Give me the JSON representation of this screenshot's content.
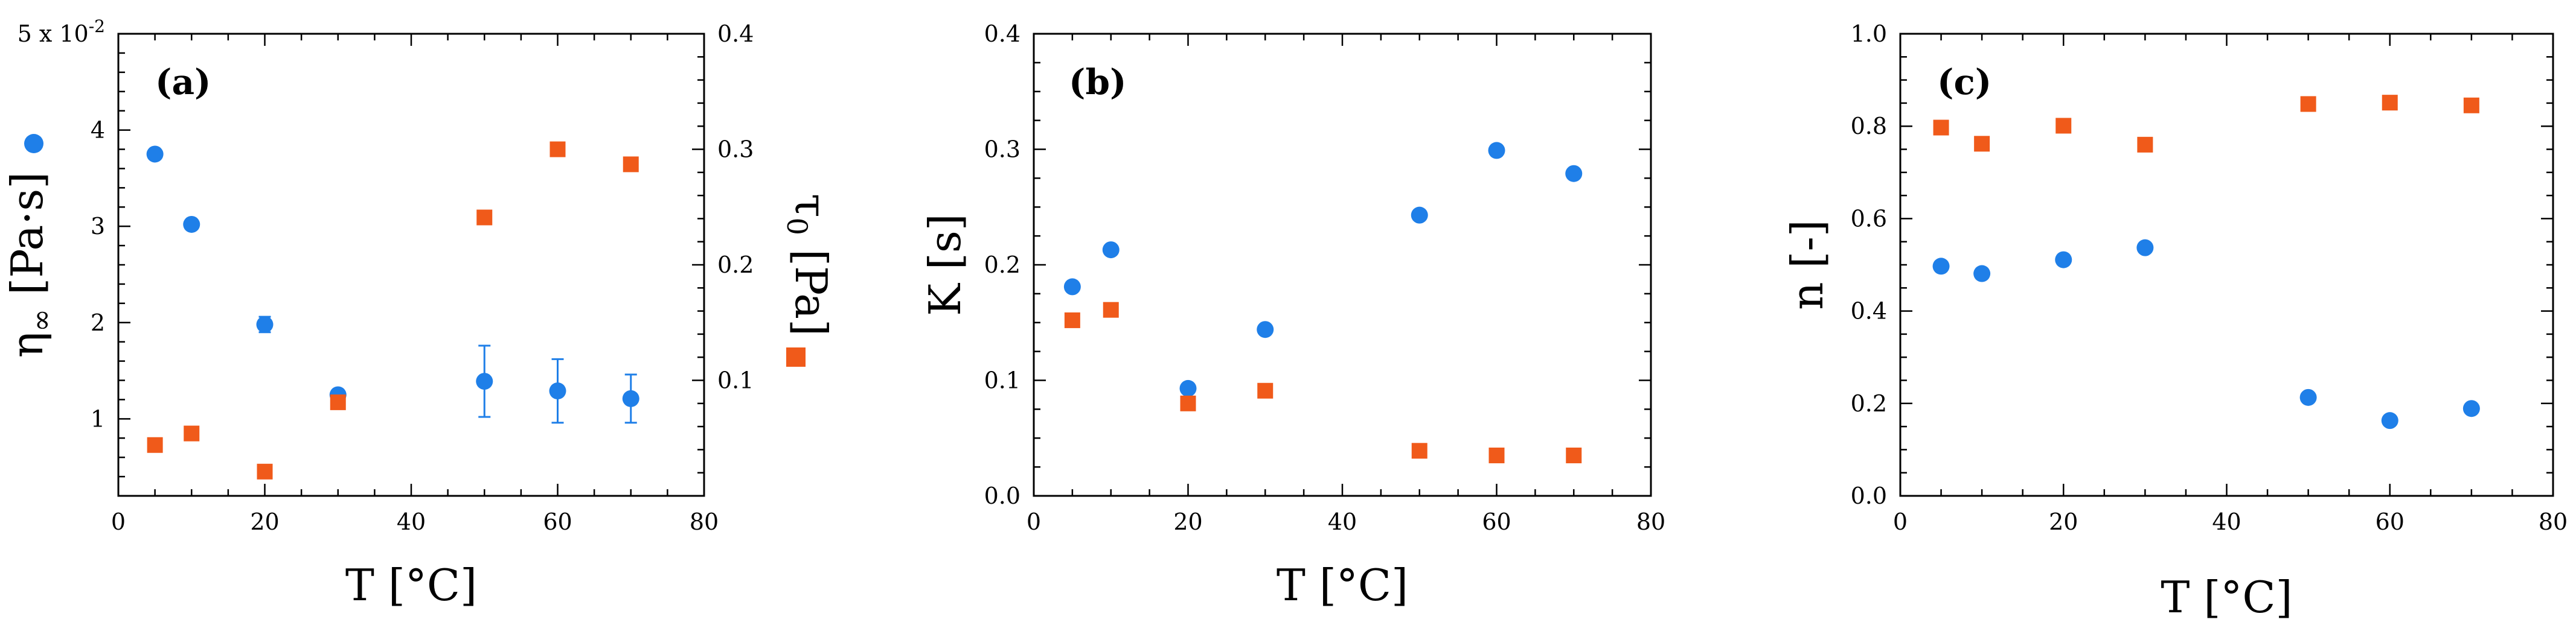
{
  "colors": {
    "blue": "#1f7fe8",
    "orange": "#f05a1a",
    "axis": "#000000"
  },
  "chart_data": [
    {
      "type": "scatter",
      "panel_label": "(a)",
      "xlabel": "T [°C]",
      "xlim": [
        0,
        80
      ],
      "x_ticks": [
        0,
        20,
        40,
        60,
        80
      ],
      "x_tick_labels": [
        "0",
        "20",
        "40",
        "60",
        "80"
      ],
      "ylabel_left": {
        "symbol": "η",
        "sub": "∞",
        "unit": " [Pa·s]"
      },
      "ylim_left": [
        0.2,
        5
      ],
      "y_ticks_left": [
        1,
        2,
        3,
        4,
        5
      ],
      "y_tick_labels_left": [
        "1",
        "2",
        "3",
        "4",
        "5 x 10-2"
      ],
      "y_scale_label": {
        "base": "5 x 10",
        "exp": "-2"
      },
      "ylabel_right": {
        "symbol": "τ",
        "sub": "0",
        "unit": " [Pa]"
      },
      "ylim_right": [
        0,
        0.4
      ],
      "y_ticks_right": [
        0.1,
        0.2,
        0.3,
        0.4
      ],
      "y_tick_labels_right": [
        "0.1",
        "0.2",
        "0.3",
        "0.4"
      ],
      "series": [
        {
          "name": "η∞",
          "marker": "circle",
          "axis": "left",
          "color": "#1f7fe8",
          "x": [
            5,
            10,
            20,
            30,
            50,
            60,
            70
          ],
          "values": [
            3.75,
            3.02,
            1.98,
            1.25,
            1.39,
            1.29,
            1.21
          ],
          "error": [
            0,
            0,
            0.08,
            0,
            0.37,
            0.33,
            0.25
          ]
        },
        {
          "name": "τ0",
          "marker": "square",
          "axis": "right",
          "color": "#f05a1a",
          "x": [
            5,
            10,
            20,
            30,
            50,
            60,
            70
          ],
          "values": [
            0.044,
            0.054,
            0.021,
            0.081,
            0.241,
            0.3,
            0.287
          ]
        }
      ]
    },
    {
      "type": "scatter",
      "panel_label": "(b)",
      "xlabel": "T [°C]",
      "xlim": [
        0,
        80
      ],
      "x_ticks": [
        0,
        20,
        40,
        60,
        80
      ],
      "x_tick_labels": [
        "0",
        "20",
        "40",
        "60",
        "80"
      ],
      "ylabel": "K [s]",
      "ylim": [
        0,
        0.4
      ],
      "y_ticks": [
        0,
        0.1,
        0.2,
        0.3,
        0.4
      ],
      "y_tick_labels": [
        "0.0",
        "0.1",
        "0.2",
        "0.3",
        "0.4"
      ],
      "series": [
        {
          "name": "K circles",
          "marker": "circle",
          "color": "#1f7fe8",
          "x": [
            5,
            10,
            20,
            30,
            50,
            60,
            70
          ],
          "values": [
            0.181,
            0.213,
            0.093,
            0.144,
            0.243,
            0.299,
            0.279
          ]
        },
        {
          "name": "K squares",
          "marker": "square",
          "color": "#f05a1a",
          "x": [
            5,
            10,
            20,
            30,
            50,
            60,
            70
          ],
          "values": [
            0.152,
            0.161,
            0.08,
            0.091,
            0.039,
            0.035,
            0.035
          ]
        }
      ]
    },
    {
      "type": "scatter",
      "panel_label": "(c)",
      "xlabel": "T [°C]",
      "xlim": [
        0,
        80
      ],
      "x_ticks": [
        0,
        20,
        40,
        60,
        80
      ],
      "x_tick_labels": [
        "0",
        "20",
        "40",
        "60",
        "80"
      ],
      "ylabel": "n [-]",
      "ylim": [
        0,
        1
      ],
      "y_ticks": [
        0,
        0.2,
        0.4,
        0.6,
        0.8,
        1
      ],
      "y_tick_labels": [
        "0.0",
        "0.2",
        "0.4",
        "0.6",
        "0.8",
        "1.0"
      ],
      "series": [
        {
          "name": "n circles",
          "marker": "circle",
          "color": "#1f7fe8",
          "x": [
            5,
            10,
            20,
            30,
            50,
            60,
            70
          ],
          "values": [
            0.497,
            0.481,
            0.511,
            0.537,
            0.213,
            0.163,
            0.189
          ]
        },
        {
          "name": "n squares",
          "marker": "square",
          "color": "#f05a1a",
          "x": [
            5,
            10,
            20,
            30,
            50,
            60,
            70
          ],
          "values": [
            0.797,
            0.762,
            0.801,
            0.76,
            0.848,
            0.851,
            0.845
          ]
        }
      ]
    }
  ]
}
